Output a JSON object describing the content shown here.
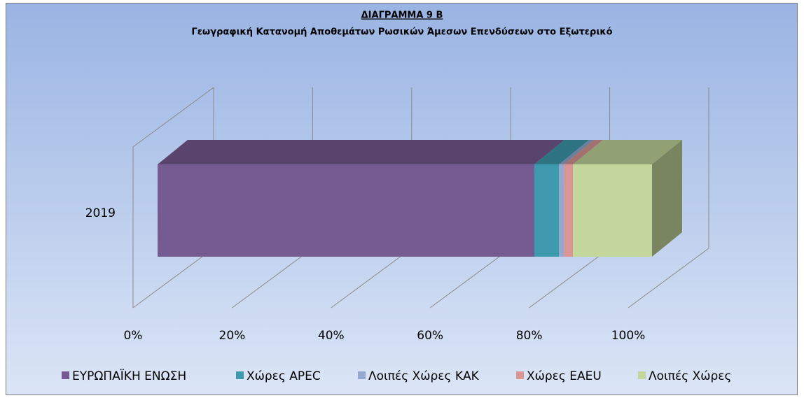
{
  "chart_data": {
    "type": "bar3d_stacked_horizontal",
    "title": "ΔΙΑΓΡΑΜΜΑ 9 Β",
    "subtitle": "Γεωγραφική Κατανομή Αποθεμάτων Ρωσικών Άμεσων Επενδύσεων στο Εξωτερικό",
    "categories": [
      "2019"
    ],
    "series": [
      {
        "name": "ΕΥΡΩΠΑΪΚΗ ΕΝΩΣΗ",
        "color": "#755b91",
        "values": [
          76.2
        ]
      },
      {
        "name": "Χώρες APEC",
        "color": "#3f9aaf",
        "values": [
          5.0
        ]
      },
      {
        "name": "Λοιπές Χώρες ΚΑΚ",
        "color": "#94a9cf",
        "values": [
          1.0
        ]
      },
      {
        "name": "Χώρες EAEU",
        "color": "#d99694",
        "values": [
          1.8
        ]
      },
      {
        "name": "Λοιπές Χώρες",
        "color": "#c3d69b",
        "values": [
          16.0
        ]
      }
    ],
    "xlim": [
      0,
      100
    ],
    "xticks": [
      {
        "value": 0,
        "label": "0%"
      },
      {
        "value": 20,
        "label": "20%"
      },
      {
        "value": 40,
        "label": "40%"
      },
      {
        "value": 60,
        "label": "60%"
      },
      {
        "value": 80,
        "label": "80%"
      },
      {
        "value": 100,
        "label": "100%"
      }
    ],
    "grid": true,
    "legend": "bottom"
  }
}
